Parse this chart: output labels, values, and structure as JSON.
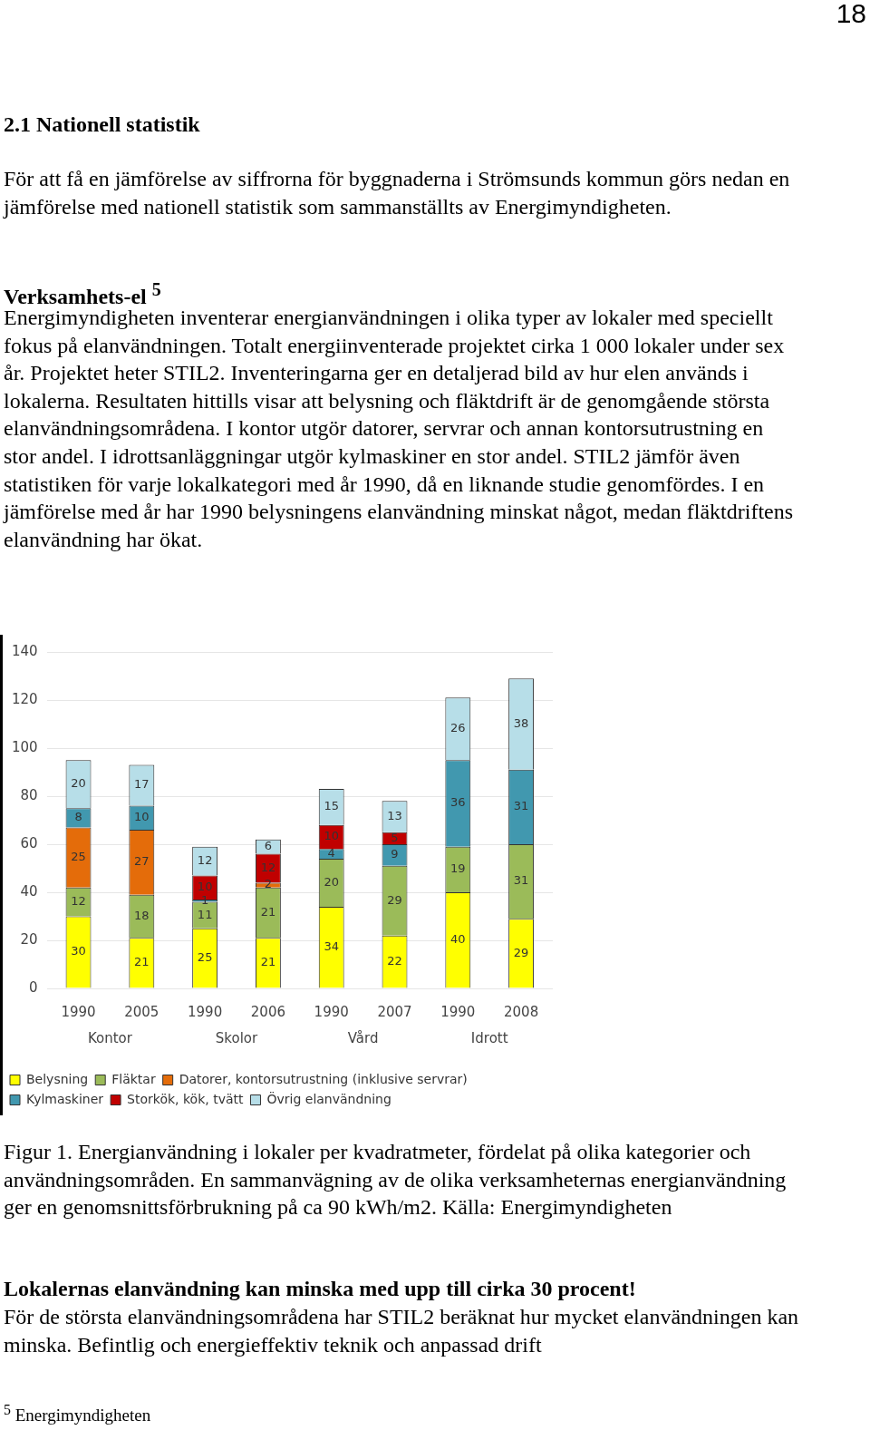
{
  "chart_data": {
    "type": "bar",
    "stacked": true,
    "categories": [
      "1990",
      "2005",
      "1990",
      "2006",
      "1990",
      "2007",
      "1990",
      "2008"
    ],
    "series": [
      {
        "name": "Belysning",
        "color": "#ffff00",
        "values": [
          30,
          21,
          25,
          21,
          34,
          22,
          40,
          29
        ]
      },
      {
        "name": "Fläktar",
        "color": "#9bbb59",
        "values": [
          12,
          18,
          11,
          21,
          20,
          29,
          19,
          31
        ]
      },
      {
        "name": "Datorer, kontorsutrustning (inklusive servrar)",
        "color": "#e46c0a",
        "values": [
          25,
          27,
          null,
          2,
          null,
          null,
          null,
          null
        ]
      },
      {
        "name": "Kylmaskiner",
        "color": "#4198af",
        "values": [
          8,
          10,
          1,
          null,
          4,
          9,
          36,
          31
        ]
      },
      {
        "name": "Storkök, kök, tvätt",
        "color": "#c00000",
        "values": [
          null,
          null,
          10,
          12,
          10,
          5,
          null,
          null
        ]
      },
      {
        "name": "Övrig elanvändning",
        "color": "#b7dee8",
        "values": [
          20,
          17,
          12,
          6,
          15,
          13,
          26,
          38
        ]
      }
    ],
    "ylim": [
      0,
      140
    ],
    "yticks": [
      0,
      20,
      40,
      60,
      80,
      100,
      120,
      140
    ],
    "grid": "y",
    "legend": "bottom",
    "data_labels": true,
    "annotations": [
      "18",
      "2.1 Nationell statistik",
      "För att få en jämförelse av siffrorna för byggnaderna i Strömsunds kommun görs nedan en jämförelse med nationell statistik som sammanställts av Energimyndigheten.",
      "Verksamhets-el $^{5}$",
      "Energimyndigheten inventerar energianvändningen i olika typer av lokaler med speciellt fokus på elanvändningen. Totalt energiinventerade projektet cirka 1 000 lokaler under sex år. Projektet heter STIL2. Inventeringarna ger en detaljerad bild av hur elen används i lokalerna. Resultaten hittills visar att belysning och fläktdrift är de genomgående största elanvändningsområdena. I kontor utgör datorer, servrar och annan kontorsutrustning en stor andel. I idrottsanläggningar utgör kylmaskiner en stor andel. STIL2 jämför även statistiken för varje lokalkategori med år 1990, då en liknande studie genomfördes. I en jämförelse med år har 1990 belysningens elanvändning minskat något, medan fläktdriftens elanvändning har ökat.",
      "Kontor",
      "Skolor",
      "Vård",
      "Idrott",
      "Figur 1. Energianvändning i lokaler per kvadratmeter, fördelat på olika kategorier och användningsområden. En sammanvägning av de olika verksamheternas energianvändning ger en genomsnittsförbrukning på ca 90 kWh/m2. Källa: Energimyndigheten",
      "Lokalernas elanvändning kan minska med upp till cirka 30 procent!",
      "För de största elanvändningsområdena har STIL2 beräknat hur mycket elanvändningen kan minska. Befintlig och energieffektiv teknik och anpassad drift",
      "$^{5}$ Energimyndigheten"
    ]
  }
}
